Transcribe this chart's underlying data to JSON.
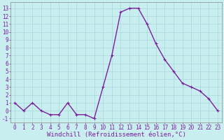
{
  "x": [
    0,
    1,
    2,
    3,
    4,
    5,
    6,
    7,
    8,
    9,
    10,
    11,
    12,
    13,
    14,
    15,
    16,
    17,
    18,
    19,
    20,
    21,
    22,
    23
  ],
  "y": [
    1.0,
    0.0,
    1.0,
    0.0,
    -0.5,
    -0.5,
    1.0,
    -0.5,
    -0.5,
    -1.0,
    3.0,
    7.0,
    12.5,
    13.0,
    13.0,
    11.0,
    8.5,
    6.5,
    5.0,
    3.5,
    3.0,
    2.5,
    1.5,
    0.0
  ],
  "line_color": "#7b1fa2",
  "marker": "+",
  "marker_size": 3,
  "bg_color": "#c8eef0",
  "grid_color": "#a8d8da",
  "xlabel": "Windchill (Refroidissement éolien,°C)",
  "xlabel_color": "#7b1fa2",
  "xtick_labels": [
    "0",
    "1",
    "2",
    "3",
    "4",
    "5",
    "6",
    "7",
    "8",
    "9",
    "10",
    "11",
    "12",
    "13",
    "14",
    "15",
    "16",
    "17",
    "18",
    "19",
    "20",
    "21",
    "22",
    "23"
  ],
  "ytick_vals": [
    -1,
    0,
    1,
    2,
    3,
    4,
    5,
    6,
    7,
    8,
    9,
    10,
    11,
    12,
    13
  ],
  "ytick_labels": [
    "-1",
    "0",
    "1",
    "2",
    "3",
    "4",
    "5",
    "6",
    "7",
    "8",
    "9",
    "10",
    "11",
    "12",
    "13"
  ],
  "ylim": [
    -1.5,
    13.8
  ],
  "xlim": [
    -0.5,
    23.5
  ],
  "tick_color": "#7b1fa2",
  "tick_fontsize": 5.5,
  "xlabel_fontsize": 6.5,
  "line_width": 1.0
}
